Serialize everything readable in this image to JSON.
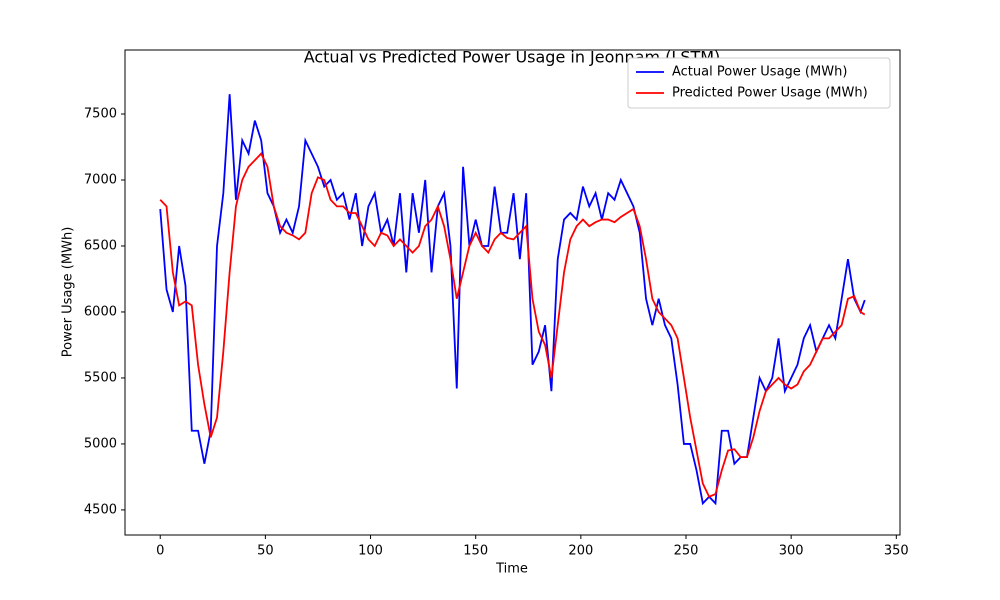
{
  "chart_data": {
    "type": "line",
    "title": "Actual vs Predicted Power Usage in Jeonnam (LSTM)",
    "x_label": "Time",
    "y_label": "Power Usage (MWh)",
    "x": [
      0,
      3,
      6,
      9,
      12,
      15,
      18,
      21,
      24,
      27,
      30,
      33,
      36,
      39,
      42,
      45,
      48,
      51,
      54,
      57,
      60,
      63,
      66,
      69,
      72,
      75,
      78,
      81,
      84,
      87,
      90,
      93,
      96,
      99,
      102,
      105,
      108,
      111,
      114,
      117,
      120,
      123,
      126,
      129,
      132,
      135,
      138,
      141,
      144,
      147,
      150,
      153,
      156,
      159,
      162,
      165,
      168,
      171,
      174,
      177,
      180,
      183,
      186,
      189,
      192,
      195,
      198,
      201,
      204,
      207,
      210,
      213,
      216,
      219,
      222,
      225,
      228,
      231,
      234,
      237,
      240,
      243,
      246,
      249,
      252,
      255,
      258,
      261,
      264,
      267,
      270,
      273,
      276,
      279,
      282,
      285,
      288,
      291,
      294,
      297,
      300,
      303,
      306,
      309,
      312,
      315,
      318,
      321,
      324,
      327,
      330,
      333,
      335
    ],
    "series": [
      {
        "name": "Actual Power Usage (MWh)",
        "color": "#0000ff",
        "values": [
          6780,
          6170,
          6000,
          6500,
          6200,
          5100,
          5100,
          4850,
          5100,
          6500,
          6900,
          7650,
          6850,
          7300,
          7200,
          7450,
          7300,
          6900,
          6800,
          6600,
          6700,
          6600,
          6800,
          7300,
          7200,
          7100,
          6950,
          7000,
          6850,
          6900,
          6700,
          6900,
          6500,
          6800,
          6900,
          6600,
          6700,
          6500,
          6900,
          6300,
          6900,
          6600,
          7000,
          6300,
          6800,
          6900,
          6500,
          5420,
          7100,
          6500,
          6700,
          6500,
          6500,
          6950,
          6600,
          6600,
          6900,
          6400,
          6900,
          5600,
          5700,
          5900,
          5400,
          6400,
          6700,
          6750,
          6700,
          6950,
          6800,
          6900,
          6700,
          6900,
          6850,
          7000,
          6900,
          6800,
          6600,
          6100,
          5900,
          6100,
          5900,
          5800,
          5450,
          5000,
          5000,
          4800,
          4550,
          4600,
          4550,
          5100,
          5100,
          4850,
          4900,
          4900,
          5200,
          5500,
          5400,
          5500,
          5800,
          5400,
          5500,
          5600,
          5800,
          5900,
          5700,
          5800,
          5900,
          5800,
          6100,
          6400,
          6100,
          6000,
          6090
        ]
      },
      {
        "name": "Predicted Power Usage (MWh)",
        "color": "#ff0000",
        "values": [
          6850,
          6800,
          6300,
          6050,
          6080,
          6050,
          5600,
          5300,
          5050,
          5200,
          5700,
          6300,
          6800,
          7000,
          7100,
          7150,
          7200,
          7100,
          6800,
          6650,
          6600,
          6580,
          6550,
          6600,
          6900,
          7020,
          7000,
          6850,
          6800,
          6800,
          6750,
          6750,
          6650,
          6550,
          6500,
          6600,
          6580,
          6500,
          6550,
          6500,
          6450,
          6500,
          6650,
          6700,
          6800,
          6650,
          6400,
          6100,
          6300,
          6500,
          6600,
          6500,
          6450,
          6550,
          6600,
          6560,
          6550,
          6600,
          6650,
          6100,
          5850,
          5750,
          5500,
          5900,
          6300,
          6550,
          6650,
          6700,
          6650,
          6680,
          6700,
          6700,
          6680,
          6720,
          6750,
          6780,
          6650,
          6400,
          6100,
          6000,
          5950,
          5900,
          5800,
          5500,
          5200,
          4950,
          4700,
          4600,
          4620,
          4800,
          4950,
          4960,
          4900,
          4900,
          5050,
          5250,
          5400,
          5450,
          5500,
          5450,
          5420,
          5450,
          5550,
          5600,
          5700,
          5800,
          5800,
          5850,
          5900,
          6100,
          6120,
          6000,
          5980
        ]
      }
    ],
    "xlim": [
      -16.75,
      351.75
    ],
    "ylim": [
      4310,
      7985
    ],
    "xticks": [
      0,
      50,
      100,
      150,
      200,
      250,
      300,
      350
    ],
    "yticks": [
      4500,
      5000,
      5500,
      6000,
      6500,
      7000,
      7500
    ],
    "legend": "upper right"
  }
}
